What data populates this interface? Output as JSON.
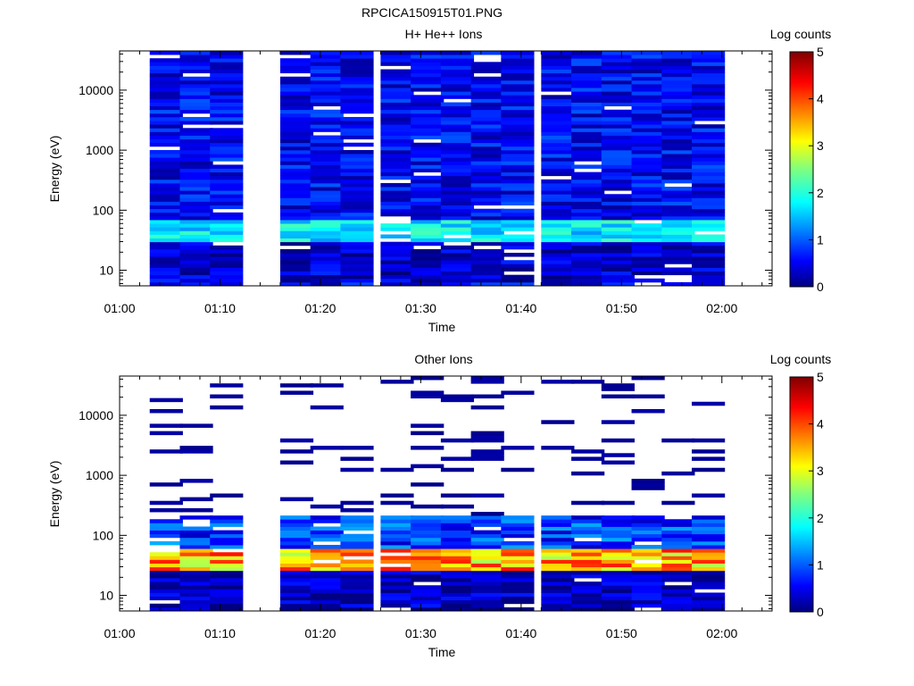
{
  "figure_title": "RPCICA150915T01.PNG",
  "colorbar_label": "Log counts",
  "colorbar_ticks": [
    "0",
    "1",
    "2",
    "3",
    "4",
    "5"
  ],
  "chart_data": [
    {
      "type": "heatmap",
      "title": "H+ He++ Ions",
      "xlabel": "Time",
      "ylabel": "Energy (eV)",
      "x_ticks": [
        "01:00",
        "01:10",
        "01:20",
        "01:30",
        "01:40",
        "01:50",
        "02:00"
      ],
      "xlim": [
        "01:00",
        "02:05"
      ],
      "y_scale": "log",
      "y_ticks": [
        "10",
        "100",
        "1000",
        "10000"
      ],
      "ylim": [
        5.5,
        45000
      ],
      "colorbar": {
        "label": "Log counts",
        "range": [
          0,
          5
        ],
        "colormap": "jet"
      },
      "data_gaps": [
        [
          "01:00",
          "01:03"
        ],
        [
          "01:12",
          "01:16"
        ]
      ],
      "columns_start": [
        "01:03",
        "01:06",
        "01:09",
        "01:16",
        "01:19",
        "01:22",
        "01:26",
        "01:29",
        "01:32",
        "01:35",
        "01:38",
        "01:42",
        "01:45",
        "01:48",
        "01:51",
        "01:54",
        "01:57"
      ],
      "typical_log_counts_by_energy": [
        {
          "energy_range_eV": [
            6,
            30
          ],
          "log_counts": 0.4
        },
        {
          "energy_range_eV": [
            30,
            70
          ],
          "log_counts": 1.8
        },
        {
          "energy_range_eV": [
            70,
            45000
          ],
          "log_counts": 0.6
        }
      ]
    },
    {
      "type": "heatmap",
      "title": "Other Ions",
      "xlabel": "Time",
      "ylabel": "Energy (eV)",
      "x_ticks": [
        "01:00",
        "01:10",
        "01:20",
        "01:30",
        "01:40",
        "01:50",
        "02:00"
      ],
      "xlim": [
        "01:00",
        "02:05"
      ],
      "y_scale": "log",
      "y_ticks": [
        "10",
        "100",
        "1000",
        "10000"
      ],
      "ylim": [
        5.5,
        45000
      ],
      "colorbar": {
        "label": "Log counts",
        "range": [
          0,
          5
        ],
        "colormap": "jet"
      },
      "data_gaps": [
        [
          "01:00",
          "01:03"
        ],
        [
          "01:12",
          "01:16"
        ]
      ],
      "columns_start": [
        "01:03",
        "01:06",
        "01:09",
        "01:16",
        "01:19",
        "01:22",
        "01:26",
        "01:29",
        "01:32",
        "01:35",
        "01:38",
        "01:42",
        "01:45",
        "01:48",
        "01:51",
        "01:54",
        "01:57"
      ],
      "typical_log_counts_by_energy": [
        {
          "energy_range_eV": [
            6,
            25
          ],
          "log_counts": 0.3
        },
        {
          "energy_range_eV": [
            25,
            60
          ],
          "log_counts": 3.5
        },
        {
          "energy_range_eV": [
            60,
            200
          ],
          "log_counts": 0.9
        },
        {
          "energy_range_eV": [
            200,
            45000
          ],
          "log_counts": 0.1,
          "note": "sparse"
        }
      ]
    }
  ]
}
